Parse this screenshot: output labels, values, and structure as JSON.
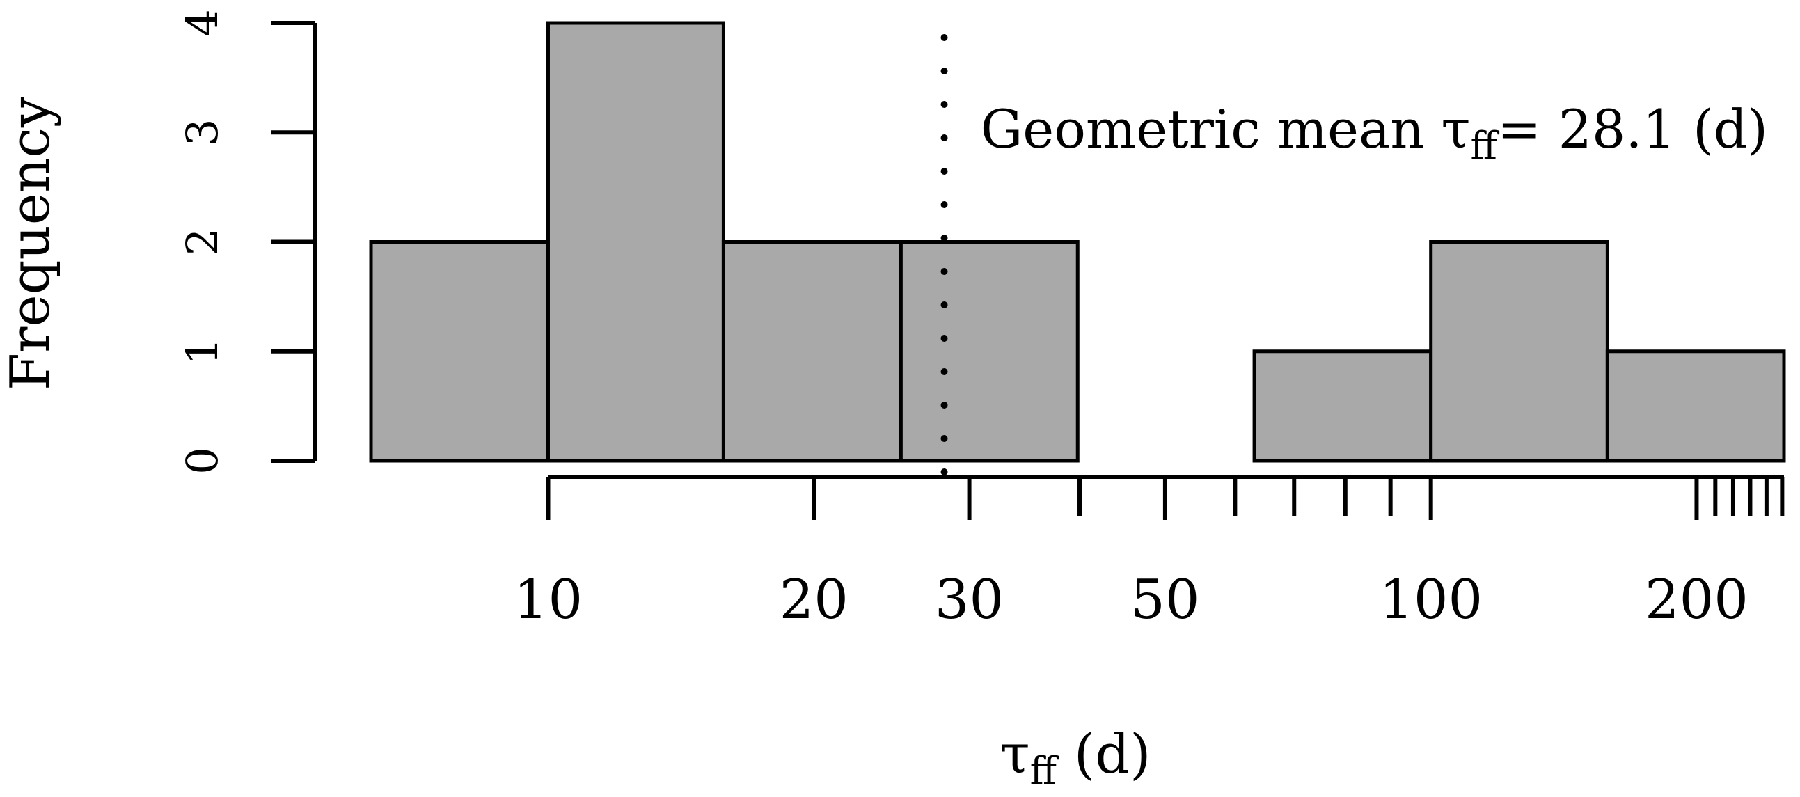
{
  "chart_data": {
    "type": "bar",
    "title": "",
    "xlabel": "τff (d)",
    "ylabel": "Frequency",
    "x_scale": "log",
    "ylim": [
      0,
      4
    ],
    "y_ticks": [
      0,
      1,
      2,
      3,
      4
    ],
    "x_ticks_labeled": [
      10,
      20,
      30,
      50,
      100,
      200
    ],
    "bin_edges": [
      6.3,
      10,
      15.8,
      25.1,
      39.8,
      63.1,
      100,
      158.5,
      251.2
    ],
    "values": [
      2,
      4,
      2,
      2,
      0,
      1,
      2,
      1
    ],
    "geometric_mean": 28.1,
    "annotation": {
      "prefix": "Geometric mean τ",
      "subscript": "ff",
      "suffix": "= 28.1 (d)"
    },
    "xlabel_parts": {
      "symbol": "τ",
      "subscript": "ff",
      "unit": " (d)"
    },
    "bar_color": "#a9a9a9",
    "edge_color": "#000000"
  }
}
